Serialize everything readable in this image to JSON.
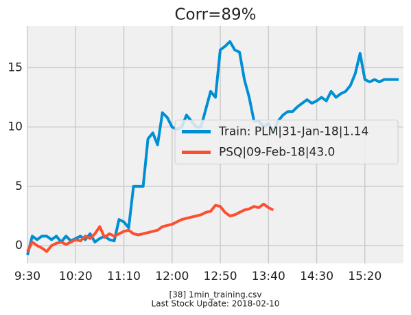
{
  "chart_data": {
    "type": "line",
    "title": "Corr=89%",
    "footnote": [
      "[38] 1min_training.csv",
      "Last Stock Update: 2018-02-10"
    ],
    "x": [
      "9:30",
      "9:35",
      "9:40",
      "9:45",
      "9:50",
      "9:55",
      "10:00",
      "10:05",
      "10:10",
      "10:15",
      "10:20",
      "10:25",
      "10:30",
      "10:35",
      "10:40",
      "10:45",
      "10:50",
      "10:55",
      "11:00",
      "11:05",
      "11:10",
      "11:15",
      "11:20",
      "11:25",
      "11:30",
      "11:35",
      "11:40",
      "11:45",
      "11:50",
      "11:55",
      "12:00",
      "12:05",
      "12:10",
      "12:15",
      "12:20",
      "12:25",
      "12:30",
      "12:35",
      "12:40",
      "12:45",
      "12:50",
      "12:55",
      "13:00",
      "13:05",
      "13:10",
      "13:15",
      "13:20",
      "13:25",
      "13:30",
      "13:35",
      "13:40",
      "13:45",
      "13:50",
      "13:55",
      "14:00",
      "14:05",
      "14:10",
      "14:15",
      "14:20",
      "14:25",
      "14:30",
      "14:35",
      "14:40",
      "14:45",
      "14:50",
      "14:55",
      "15:00",
      "15:05",
      "15:10",
      "15:15",
      "15:20",
      "15:25",
      "15:30",
      "15:35",
      "15:40",
      "15:45",
      "15:50",
      "15:55"
    ],
    "series": [
      {
        "name": "Train: PLM|31-Jan-18|1.14",
        "color": "#008fd5",
        "values": [
          -0.8,
          0.8,
          0.5,
          0.8,
          0.8,
          0.5,
          0.8,
          0.3,
          0.8,
          0.4,
          0.6,
          0.8,
          0.5,
          1.0,
          0.3,
          0.6,
          0.8,
          0.5,
          0.4,
          2.2,
          2.0,
          1.5,
          5.0,
          5.0,
          5.0,
          9.0,
          9.5,
          8.5,
          11.2,
          10.8,
          10.0,
          9.8,
          10.0,
          11.0,
          10.5,
          10.0,
          10.0,
          11.5,
          13.0,
          12.5,
          16.5,
          16.8,
          17.2,
          16.5,
          16.3,
          14.0,
          12.5,
          10.5,
          10.5,
          10.0,
          10.3,
          9.6,
          10.5,
          11.0,
          11.3,
          11.3,
          11.7,
          12.0,
          12.3,
          12.0,
          12.2,
          12.5,
          12.2,
          13.0,
          12.5,
          12.8,
          13.0,
          13.5,
          14.5,
          16.2,
          14.0,
          13.8,
          14.0,
          13.8,
          14.0,
          14.0,
          14.0,
          14.0
        ]
      },
      {
        "name": "PSQ|09-Feb-18|43.0",
        "color": "#fc4f30",
        "values": [
          -0.5,
          0.3,
          0,
          -0.2,
          -0.5,
          0,
          0.2,
          0.3,
          0.1,
          0.3,
          0.5,
          0.4,
          0.8,
          0.6,
          1.0,
          1.6,
          0.7,
          1.0,
          0.8,
          1.0,
          1.2,
          1.3,
          1.0,
          0.9,
          1.0,
          1.1,
          1.2,
          1.3,
          1.6,
          1.7,
          1.8,
          2.0,
          2.2,
          2.3,
          2.4,
          2.5,
          2.6,
          2.8,
          2.9,
          3.4,
          3.3,
          2.8,
          2.5,
          2.6,
          2.8,
          3.0,
          3.1,
          3.3,
          3.2,
          3.5,
          3.2,
          3.0,
          null,
          null,
          null,
          null,
          null,
          null,
          null,
          null,
          null,
          null,
          null,
          null,
          null,
          null,
          null,
          null,
          null,
          null,
          null,
          null,
          null,
          null,
          null,
          null,
          null,
          null
        ]
      }
    ],
    "xlim": [
      "9:30",
      "16:00"
    ],
    "xticks": [
      "9:30",
      "10:20",
      "11:10",
      "12:00",
      "12:50",
      "13:40",
      "14:30",
      "15:20"
    ],
    "ylim": [
      -1.5,
      18.5
    ],
    "yticks": [
      0,
      5,
      10,
      15
    ],
    "grid": true,
    "legend": "center right"
  }
}
